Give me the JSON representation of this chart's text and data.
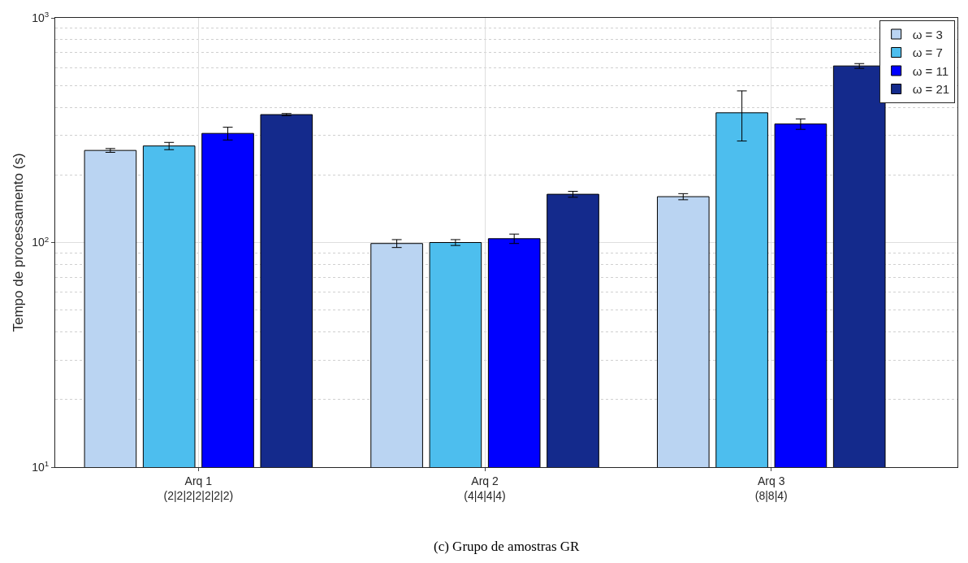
{
  "chart_data": {
    "type": "bar",
    "ylabel": "Tempo de processamento (s)",
    "categories": [
      "Arq 1\n(2|2|2|2|2|2|2)",
      "Arq 2\n(4|4|4|4)",
      "Arq 3\n(8|8|4)"
    ],
    "series": [
      {
        "name": "ω = 3",
        "color": "#bad4f2",
        "values": [
          257,
          99,
          160
        ],
        "errors": [
          5,
          4,
          5
        ]
      },
      {
        "name": "ω = 7",
        "color": "#4dbeee",
        "values": [
          269,
          100,
          378
        ],
        "errors": [
          10,
          3,
          95
        ]
      },
      {
        "name": "ω = 11",
        "color": "#0000ff",
        "values": [
          306,
          104,
          337
        ],
        "errors": [
          20,
          5,
          18
        ]
      },
      {
        "name": "ω = 21",
        "color": "#142a8c",
        "values": [
          371,
          164,
          611
        ],
        "errors": [
          4,
          5,
          15
        ]
      }
    ],
    "log": true,
    "ylim": [
      10,
      1000
    ],
    "yticks": [
      {
        "value": 10,
        "label": "10$^{1}$"
      },
      {
        "value": 100,
        "label": "10$^{2}$"
      },
      {
        "value": 1000,
        "label": "10$^{3}$"
      }
    ],
    "grid": true,
    "legend": "top right",
    "annotations": [
      "(c) Grupo de amostras GR"
    ]
  }
}
